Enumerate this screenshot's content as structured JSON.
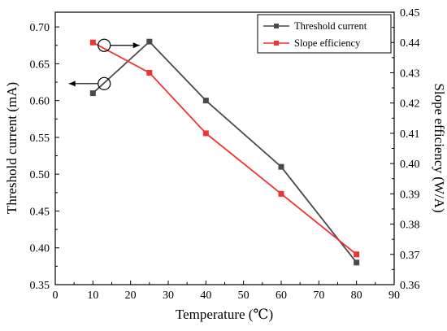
{
  "chart_data": {
    "type": "line",
    "title": "",
    "xlabel": "Temperature (℃)",
    "ylabel_left": "Threshold current (mA)",
    "ylabel_right": "Slope efficiency (W/A)",
    "xlim": [
      0,
      90
    ],
    "ylim_left": [
      0.35,
      0.72
    ],
    "ylim_right": [
      0.36,
      0.45
    ],
    "x_ticks": [
      "0",
      "10",
      "20",
      "30",
      "40",
      "50",
      "60",
      "70",
      "80",
      "90"
    ],
    "y_left_ticks": [
      "0.35",
      "0.40",
      "0.45",
      "0.50",
      "0.55",
      "0.60",
      "0.65",
      "0.70"
    ],
    "y_right_ticks": [
      "0.36",
      "0.37",
      "0.38",
      "0.39",
      "0.40",
      "0.41",
      "0.42",
      "0.43",
      "0.44",
      "0.45"
    ],
    "grid": false,
    "legend_position": "top-right",
    "series": [
      {
        "name": "Threshold current",
        "axis": "left",
        "color": "#4a4a4a",
        "marker": "square",
        "x": [
          10,
          25,
          40,
          60,
          80
        ],
        "y": [
          0.61,
          0.68,
          0.6,
          0.51,
          0.38
        ]
      },
      {
        "name": "Slope efficiency",
        "axis": "right",
        "color": "#ee3333",
        "marker": "square",
        "x": [
          10,
          25,
          40,
          60,
          80
        ],
        "y": [
          0.44,
          0.43,
          0.41,
          0.39,
          0.37
        ]
      }
    ],
    "annotations": [
      {
        "type": "circle-arrow",
        "series": "Threshold current",
        "points_to": "left",
        "x": 13,
        "y_axis": "left",
        "y": 0.623
      },
      {
        "type": "circle-arrow",
        "series": "Slope efficiency",
        "points_to": "right",
        "x": 13,
        "y_axis": "left",
        "y": 0.675
      }
    ]
  }
}
